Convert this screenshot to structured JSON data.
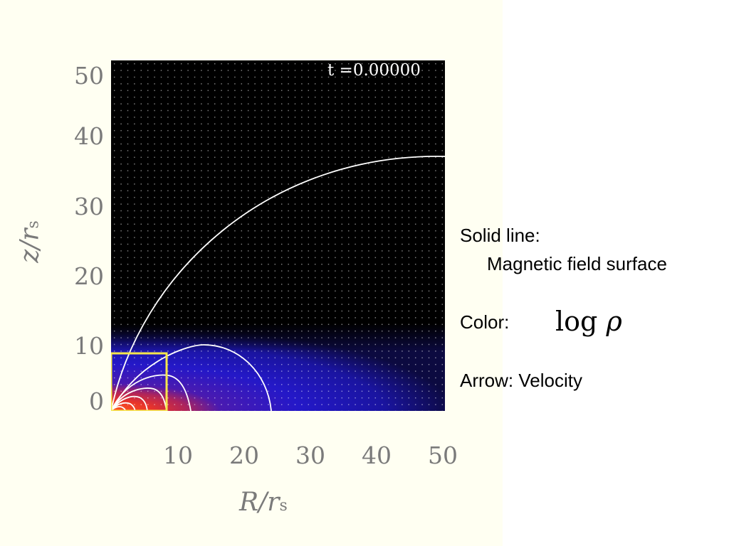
{
  "plot": {
    "time_label": "t =0.00000",
    "x_axis": {
      "label_var": "R/r",
      "label_sub": "s",
      "ticks": [
        "10",
        "20",
        "30",
        "40",
        "50"
      ],
      "range": [
        0,
        50
      ]
    },
    "y_axis": {
      "label_var": "z/r",
      "label_sub": "s",
      "ticks": [
        "50",
        "40",
        "30",
        "20",
        "10",
        "0"
      ],
      "range": [
        0,
        50
      ]
    }
  },
  "legend": {
    "solid_line_label": "Solid line:",
    "solid_line_desc": "Magnetic field surface",
    "color_label": "Color:",
    "color_formula_log": "log",
    "color_formula_rho": "ρ",
    "arrow_label": "Arrow: Velocity"
  },
  "colors": {
    "background": "#000000",
    "field_line": "#ffffff",
    "highlight_box": "#f5e64c",
    "axis_text": "#7a7a7a"
  }
}
